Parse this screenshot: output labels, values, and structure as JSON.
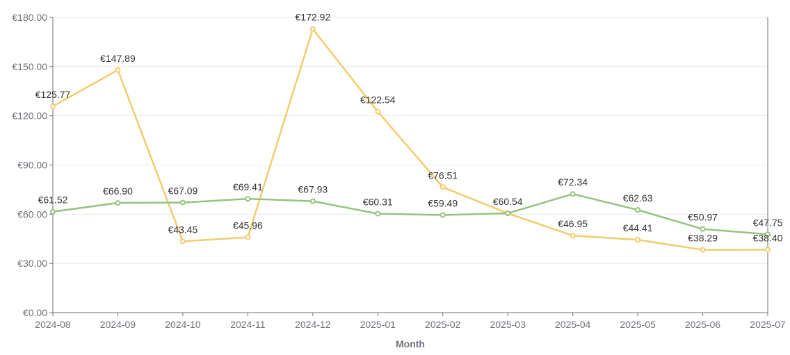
{
  "chart_data": {
    "type": "line",
    "title": "",
    "xlabel": "Month",
    "ylabel": "",
    "ylim": [
      0,
      180
    ],
    "yticks": [
      0,
      30,
      60,
      90,
      120,
      150,
      180
    ],
    "ytick_labels": [
      "€0.00",
      "€30.00",
      "€60.00",
      "€90.00",
      "€120.00",
      "€150.00",
      "€180.00"
    ],
    "grid": true,
    "categories": [
      "2024-08",
      "2024-09",
      "2024-10",
      "2024-11",
      "2024-12",
      "2025-01",
      "2025-02",
      "2025-03",
      "2025-04",
      "2025-05",
      "2025-06",
      "2025-07"
    ],
    "series": [
      {
        "name": "yellow",
        "color": "#f2cc6b",
        "values": [
          125.77,
          147.89,
          43.45,
          45.96,
          172.92,
          122.54,
          76.51,
          60.54,
          46.95,
          44.41,
          38.29,
          38.4
        ],
        "labels": [
          "€125.77",
          "€147.89",
          "€43.45",
          "€45.96",
          "€172.92",
          "€122.54",
          "€76.51",
          "",
          "€46.95",
          "€44.41",
          "€38.29",
          "€38.40"
        ],
        "label_pos": [
          "above",
          "above",
          "below",
          "below",
          "above",
          "above",
          "above",
          "above",
          "below",
          "below",
          "above",
          "above"
        ]
      },
      {
        "name": "green",
        "color": "#93c47d",
        "values": [
          61.52,
          66.9,
          67.09,
          69.41,
          67.93,
          60.31,
          59.49,
          60.54,
          72.34,
          62.63,
          50.97,
          47.75
        ],
        "labels": [
          "€61.52",
          "€66.90",
          "€67.09",
          "€69.41",
          "€67.93",
          "€60.31",
          "€59.49",
          "€60.54",
          "€72.34",
          "€62.63",
          "€50.97",
          "€47.75"
        ],
        "label_pos": [
          "above",
          "above",
          "above",
          "above",
          "above",
          "above",
          "above",
          "above",
          "above",
          "above",
          "above",
          "above"
        ]
      }
    ]
  }
}
